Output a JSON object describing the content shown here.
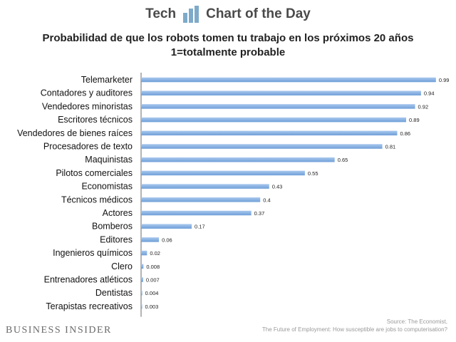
{
  "header": {
    "left_text": "Tech",
    "right_text": "Chart of the Day",
    "logo_icon": "bar-chart-logo-icon"
  },
  "footer": {
    "brand": "BUSINESS INSIDER",
    "source_line1": "Source: The Economist,",
    "source_line2": "The Future of Employment: How susceptible are jobs to computerisation?"
  },
  "colors": {
    "bar": "#6f9fd8",
    "bar_light": "#a9c8ee",
    "axis": "#444444",
    "logo": "#7eaac9"
  },
  "chart_data": {
    "type": "bar",
    "orientation": "horizontal",
    "title": "Probabilidad de que los robots tomen tu trabajo en los próximos 20 años",
    "subtitle": "1=totalmente probable",
    "xlim": [
      0,
      1
    ],
    "grid": false,
    "categories": [
      "Telemarketer",
      "Contadores y auditores",
      "Vendedores minoristas",
      "Escritores técnicos",
      "Vendedores de bienes raíces",
      "Procesadores de texto",
      "Maquinistas",
      "Pilotos comerciales",
      "Economistas",
      "Técnicos médicos",
      "Actores",
      "Bomberos",
      "Editores",
      "Ingenieros químicos",
      "Clero",
      "Entrenadores atléticos",
      "Dentistas",
      "Terapistas recreativos"
    ],
    "values": [
      0.99,
      0.94,
      0.92,
      0.89,
      0.86,
      0.81,
      0.65,
      0.55,
      0.43,
      0.4,
      0.37,
      0.17,
      0.06,
      0.02,
      0.008,
      0.007,
      0.004,
      0.003
    ],
    "value_labels": [
      "0.99",
      "0.94",
      "0.92",
      "0.89",
      "0.86",
      "0.81",
      "0.65",
      "0.55",
      "0.43",
      "0.4",
      "0.37",
      "0.17",
      "0.06",
      "0.02",
      "0.008",
      "0.007",
      "0.004",
      "0.003"
    ]
  }
}
